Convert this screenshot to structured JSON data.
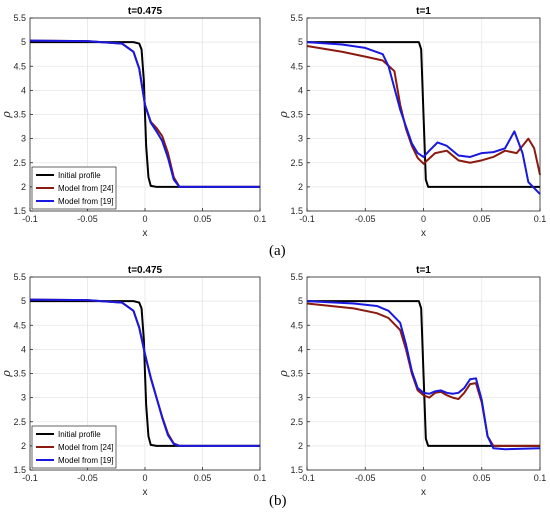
{
  "panel_labels": [
    "(a)",
    "(b)"
  ],
  "colors": {
    "initial": "#000000",
    "model24": "#8B1A10",
    "model19": "#1818E0",
    "grid": "#E6E6E6"
  },
  "chart_data": [
    {
      "type": "line",
      "title": "t=0.475",
      "xlabel": "x",
      "ylabel": "ρ",
      "xlim": [
        -0.1,
        0.1
      ],
      "ylim": [
        1.5,
        5.5
      ],
      "xticks": [
        "-0.1",
        "-0.05",
        "0",
        "0.05",
        "0.1"
      ],
      "yticks": [
        "1.5",
        "2",
        "2.5",
        "3",
        "3.5",
        "4",
        "4.5",
        "5",
        "5.5"
      ],
      "grid": true,
      "legend_position": "bottom-left",
      "series": [
        {
          "name": "Initial profile",
          "color": "initial",
          "x": [
            -0.1,
            -0.01,
            -0.005,
            -0.003,
            -0.001,
            0,
            0.001,
            0.003,
            0.005,
            0.01,
            0.1
          ],
          "y": [
            5,
            5,
            4.97,
            4.85,
            4.2,
            3.5,
            2.85,
            2.2,
            2.02,
            2,
            2
          ]
        },
        {
          "name": "Model from [24]",
          "color": "model24",
          "x": [
            -0.1,
            -0.05,
            -0.02,
            -0.01,
            -0.005,
            0,
            0.005,
            0.01,
            0.015,
            0.02,
            0.025,
            0.03,
            0.04,
            0.1
          ],
          "y": [
            5.03,
            5.02,
            4.97,
            4.8,
            4.45,
            3.7,
            3.35,
            3.22,
            3.05,
            2.7,
            2.2,
            2.0,
            2.0,
            2.0
          ]
        },
        {
          "name": "Model from [19]",
          "color": "model19",
          "x": [
            -0.1,
            -0.05,
            -0.02,
            -0.01,
            -0.005,
            0,
            0.005,
            0.01,
            0.015,
            0.02,
            0.025,
            0.03,
            0.04,
            0.1
          ],
          "y": [
            5.03,
            5.02,
            4.97,
            4.8,
            4.45,
            3.7,
            3.33,
            3.15,
            2.95,
            2.6,
            2.15,
            2.0,
            2.0,
            2.0
          ]
        }
      ]
    },
    {
      "type": "line",
      "title": "t=1",
      "xlabel": "x",
      "ylabel": "ρ",
      "xlim": [
        -0.1,
        0.1
      ],
      "ylim": [
        1.5,
        5.5
      ],
      "xticks": [
        "-0.1",
        "-0.05",
        "0",
        "0.05",
        "0.1"
      ],
      "yticks": [
        "1.5",
        "2",
        "2.5",
        "3",
        "3.5",
        "4",
        "4.5",
        "5",
        "5.5"
      ],
      "grid": true,
      "series": [
        {
          "name": "Initial profile",
          "color": "initial",
          "x": [
            -0.1,
            -0.004,
            -0.002,
            0,
            0.002,
            0.004,
            0.1
          ],
          "y": [
            5,
            5,
            4.85,
            3.5,
            2.15,
            2,
            2
          ]
        },
        {
          "name": "Model from [24]",
          "color": "model24",
          "x": [
            -0.1,
            -0.07,
            -0.05,
            -0.035,
            -0.025,
            -0.02,
            -0.015,
            -0.01,
            -0.005,
            0,
            0.01,
            0.02,
            0.03,
            0.04,
            0.05,
            0.06,
            0.07,
            0.08,
            0.09,
            0.095,
            0.1
          ],
          "y": [
            4.92,
            4.8,
            4.7,
            4.62,
            4.4,
            3.7,
            3.2,
            2.85,
            2.6,
            2.48,
            2.7,
            2.75,
            2.55,
            2.5,
            2.55,
            2.62,
            2.75,
            2.7,
            3.0,
            2.8,
            2.25
          ]
        },
        {
          "name": "Model from [19]",
          "color": "model19",
          "x": [
            -0.1,
            -0.07,
            -0.05,
            -0.035,
            -0.03,
            -0.02,
            -0.01,
            -0.005,
            0,
            0.005,
            0.012,
            0.02,
            0.03,
            0.04,
            0.05,
            0.06,
            0.07,
            0.078,
            0.085,
            0.09,
            0.1
          ],
          "y": [
            5.0,
            4.95,
            4.88,
            4.75,
            4.5,
            3.6,
            2.9,
            2.7,
            2.62,
            2.75,
            2.92,
            2.85,
            2.65,
            2.62,
            2.7,
            2.72,
            2.8,
            3.15,
            2.7,
            2.1,
            1.85
          ]
        }
      ]
    },
    {
      "type": "line",
      "title": "t=0.475",
      "xlabel": "x",
      "ylabel": "ρ",
      "xlim": [
        -0.1,
        0.1
      ],
      "ylim": [
        1.5,
        5.5
      ],
      "xticks": [
        "-0.1",
        "-0.05",
        "0",
        "0.05",
        "0.1"
      ],
      "yticks": [
        "1.5",
        "2",
        "2.5",
        "3",
        "3.5",
        "4",
        "4.5",
        "5",
        "5.5"
      ],
      "grid": true,
      "legend_position": "bottom-left",
      "series": [
        {
          "name": "Initial profile",
          "color": "initial",
          "x": [
            -0.1,
            -0.01,
            -0.005,
            -0.003,
            -0.001,
            0,
            0.001,
            0.003,
            0.005,
            0.01,
            0.1
          ],
          "y": [
            5,
            5,
            4.97,
            4.85,
            4.2,
            3.5,
            2.85,
            2.2,
            2.02,
            2,
            2
          ]
        },
        {
          "name": "Model from [24]",
          "color": "model24",
          "x": [
            -0.1,
            -0.05,
            -0.02,
            -0.01,
            -0.005,
            0,
            0.005,
            0.01,
            0.015,
            0.02,
            0.025,
            0.03,
            0.04,
            0.1
          ],
          "y": [
            5.03,
            5.02,
            4.97,
            4.8,
            4.45,
            3.9,
            3.4,
            3.0,
            2.6,
            2.25,
            2.05,
            2.0,
            2.0,
            2.0
          ]
        },
        {
          "name": "Model from [19]",
          "color": "model19",
          "x": [
            -0.1,
            -0.05,
            -0.02,
            -0.01,
            -0.005,
            0,
            0.005,
            0.01,
            0.015,
            0.02,
            0.025,
            0.03,
            0.04,
            0.1
          ],
          "y": [
            5.03,
            5.02,
            4.97,
            4.8,
            4.45,
            3.9,
            3.42,
            3.0,
            2.58,
            2.22,
            2.04,
            2.0,
            2.0,
            2.0
          ]
        }
      ]
    },
    {
      "type": "line",
      "title": "t=1",
      "xlabel": "x",
      "ylabel": "ρ",
      "xlim": [
        -0.1,
        0.1
      ],
      "ylim": [
        1.5,
        5.5
      ],
      "xticks": [
        "-0.1",
        "-0.05",
        "0",
        "0.05",
        "0.1"
      ],
      "yticks": [
        "1.5",
        "2",
        "2.5",
        "3",
        "3.5",
        "4",
        "4.5",
        "5",
        "5.5"
      ],
      "grid": true,
      "series": [
        {
          "name": "Initial profile",
          "color": "initial",
          "x": [
            -0.1,
            -0.004,
            -0.002,
            0,
            0.002,
            0.004,
            0.1
          ],
          "y": [
            5,
            5,
            4.85,
            3.5,
            2.15,
            2,
            2
          ]
        },
        {
          "name": "Model from [24]",
          "color": "model24",
          "x": [
            -0.1,
            -0.06,
            -0.04,
            -0.03,
            -0.02,
            -0.015,
            -0.01,
            -0.005,
            0,
            0.005,
            0.01,
            0.015,
            0.02,
            0.025,
            0.03,
            0.035,
            0.04,
            0.045,
            0.05,
            0.055,
            0.06,
            0.1
          ],
          "y": [
            4.95,
            4.85,
            4.75,
            4.65,
            4.4,
            4.0,
            3.5,
            3.15,
            3.05,
            3.0,
            3.1,
            3.12,
            3.05,
            3.0,
            2.97,
            3.1,
            3.28,
            3.3,
            2.9,
            2.2,
            2.0,
            2.0
          ]
        },
        {
          "name": "Model from [19]",
          "color": "model19",
          "x": [
            -0.1,
            -0.06,
            -0.04,
            -0.03,
            -0.02,
            -0.015,
            -0.01,
            -0.005,
            0,
            0.005,
            0.01,
            0.015,
            0.02,
            0.025,
            0.03,
            0.035,
            0.04,
            0.045,
            0.05,
            0.055,
            0.06,
            0.07,
            0.1
          ],
          "y": [
            5.0,
            4.95,
            4.9,
            4.8,
            4.55,
            4.1,
            3.55,
            3.2,
            3.1,
            3.08,
            3.13,
            3.15,
            3.1,
            3.08,
            3.1,
            3.2,
            3.38,
            3.4,
            2.95,
            2.2,
            1.95,
            1.93,
            1.95
          ]
        }
      ]
    }
  ]
}
